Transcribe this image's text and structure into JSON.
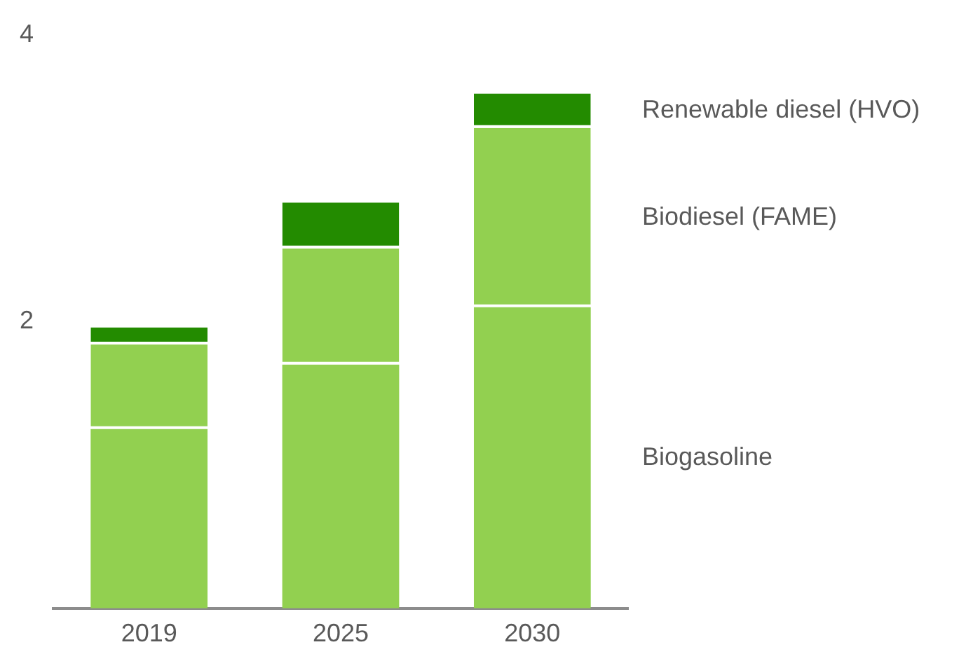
{
  "chart_data": {
    "type": "bar",
    "stacked": true,
    "categories": [
      "2019",
      "2025",
      "2030"
    ],
    "series": [
      {
        "name": "Biogasoline",
        "color": "#92d050",
        "values": [
          1.25,
          1.7,
          2.1
        ]
      },
      {
        "name": "Biodiesel (FAME)",
        "color": "#92d050",
        "values": [
          0.59,
          0.81,
          1.25
        ]
      },
      {
        "name": "Renewable diesel (HVO)",
        "color": "#238b00",
        "values": [
          0.12,
          0.32,
          0.24
        ]
      }
    ],
    "ylim": [
      0,
      4
    ],
    "yticks": [
      2,
      4
    ],
    "grid": false,
    "legend": false
  }
}
